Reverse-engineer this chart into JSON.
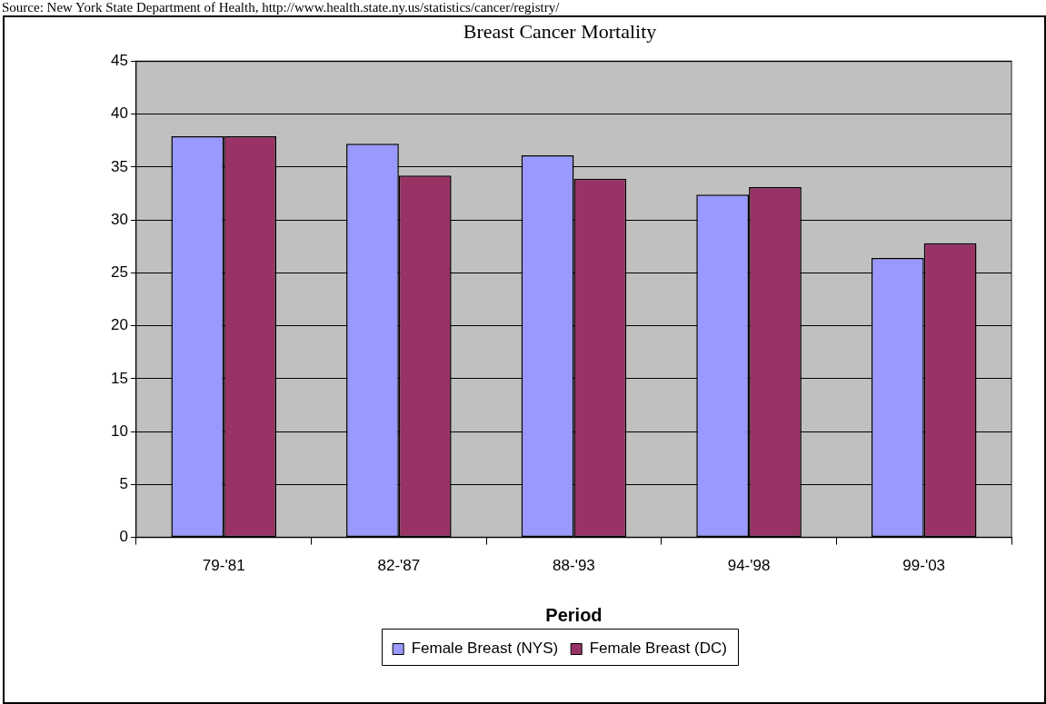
{
  "chart_data": {
    "type": "bar",
    "title": "Breast Cancer Mortality",
    "xlabel": "Period",
    "categories": [
      "79-'81",
      "82-'87",
      "88-'93",
      "94-'98",
      "99-'03"
    ],
    "series": [
      {
        "name": "Female Breast (NYS)",
        "color": "#9999ff",
        "values": [
          37.9,
          37.2,
          36.1,
          32.4,
          26.4
        ]
      },
      {
        "name": "Female Breast (DC)",
        "color": "#993366",
        "values": [
          37.9,
          34.2,
          33.9,
          33.1,
          27.8
        ]
      }
    ],
    "ylim": [
      0,
      45
    ],
    "yticks": [
      0,
      5,
      10,
      15,
      20,
      25,
      30,
      35,
      40,
      45
    ],
    "grid": "y",
    "legend": "bottom",
    "annotations": [
      "Source: New York State Department of Health, http://www.health.state.ny.us/statistics/cancer/registry/"
    ]
  }
}
